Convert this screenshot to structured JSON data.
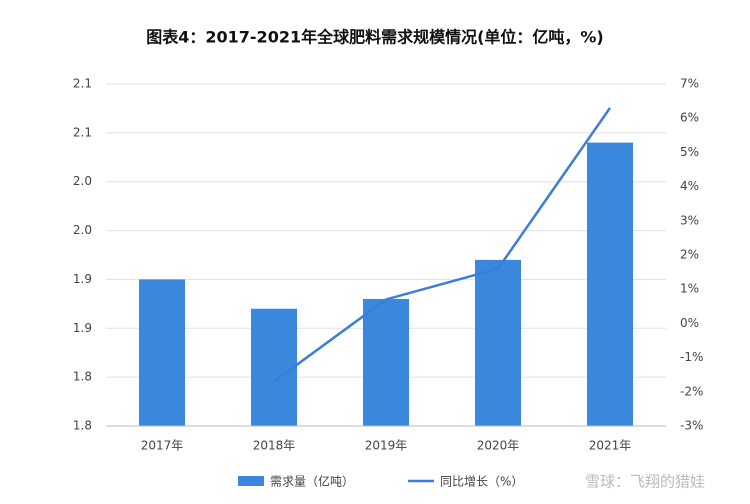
{
  "chart_data": {
    "type": "bar_line",
    "title": "图表4：2017-2021年全球肥料需求规模情况(单位：亿吨，%)",
    "categories": [
      "2017年",
      "2018年",
      "2019年",
      "2020年",
      "2021年"
    ],
    "series": [
      {
        "name": "需求量（亿吨）",
        "type": "bar",
        "color": "#3b87de",
        "values": [
          1.9,
          1.87,
          1.88,
          1.92,
          2.04
        ]
      },
      {
        "name": "同比增长（%）",
        "type": "line",
        "color": "#3b7dd8",
        "axis": "y2",
        "values": [
          null,
          -1.7,
          0.7,
          1.6,
          6.3
        ]
      }
    ],
    "ylim": [
      1.75,
      2.1
    ],
    "yticks": [
      {
        "value": 1.75,
        "label": "1.8"
      },
      1.8,
      {
        "value": 1.85,
        "label": "1.9"
      },
      1.9,
      {
        "value": 1.95,
        "label": "2.0"
      },
      {
        "value": 2.0,
        "label": "2.0"
      },
      {
        "value": 2.05,
        "label": "2.1"
      },
      2.1
    ],
    "y2lim": [
      -3,
      7
    ],
    "y2ticks": [
      {
        "value": -3,
        "label": "-3%"
      },
      {
        "value": -2,
        "label": "-2%"
      },
      {
        "value": -1,
        "label": "-1%"
      },
      {
        "value": 0,
        "label": "0%"
      },
      {
        "value": 1,
        "label": "1%"
      },
      {
        "value": 2,
        "label": "2%"
      },
      {
        "value": 3,
        "label": "3%"
      },
      {
        "value": 4,
        "label": "4%"
      },
      {
        "value": 5,
        "label": "5%"
      },
      {
        "value": 6,
        "label": "6%"
      },
      {
        "value": 7,
        "label": "7%"
      }
    ],
    "grid": true,
    "legend": "bottom",
    "watermark": "雪球：飞翔的猎娃"
  }
}
